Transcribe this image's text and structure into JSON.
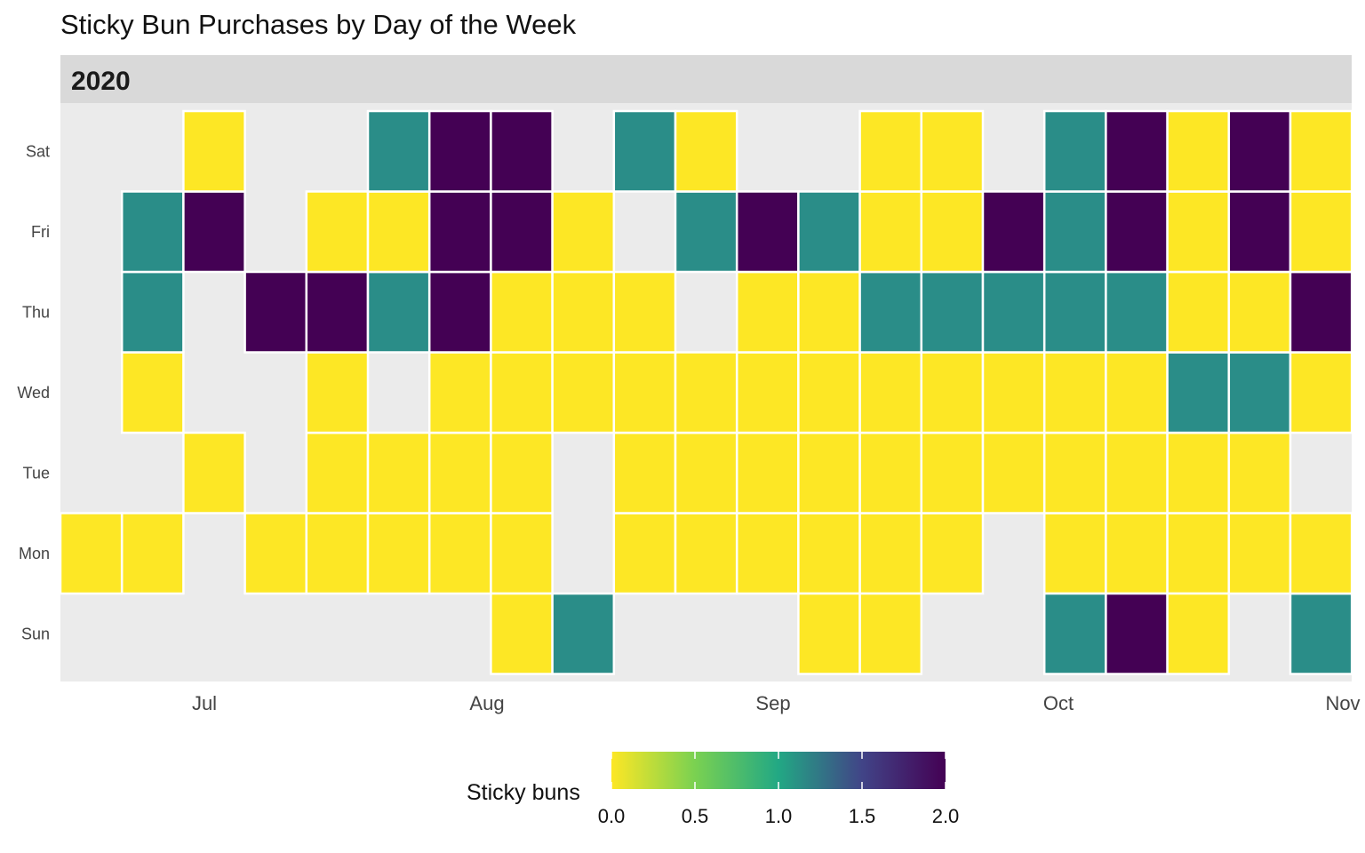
{
  "chart_data": {
    "type": "heatmap",
    "title": "Sticky Bun Purchases by Day of the Week",
    "facet_label": "2020",
    "days": [
      "Sun",
      "Mon",
      "Tue",
      "Wed",
      "Thu",
      "Fri",
      "Sat"
    ],
    "x_ticks": [
      "Jul",
      "Aug",
      "Sep",
      "Oct",
      "Nov"
    ],
    "week_start_dates": [
      "2020-06-21",
      "2020-06-28",
      "2020-07-05",
      "2020-07-12",
      "2020-07-19",
      "2020-07-26",
      "2020-08-02",
      "2020-08-09",
      "2020-08-16",
      "2020-08-23",
      "2020-08-30",
      "2020-09-06",
      "2020-09-13",
      "2020-09-20",
      "2020-09-27",
      "2020-10-04",
      "2020-10-11",
      "2020-10-18",
      "2020-10-25",
      "2020-11-01"
    ],
    "values": [
      [
        null,
        null,
        null,
        null,
        null,
        null,
        null,
        null,
        null,
        null,
        null,
        null,
        null,
        null,
        null,
        null,
        null,
        null,
        null,
        null
      ],
      [
        0,
        0,
        null,
        0,
        0,
        0,
        0,
        0,
        null,
        0,
        0,
        0,
        0,
        0,
        0,
        null,
        0,
        0,
        0,
        0
      ],
      [
        null,
        null,
        0,
        null,
        0,
        0,
        0,
        0,
        null,
        0,
        0,
        0,
        0,
        0,
        0,
        0,
        0,
        0,
        0,
        0
      ],
      [
        null,
        0,
        null,
        null,
        0,
        null,
        0,
        0,
        0,
        0,
        0,
        0,
        0,
        0,
        0,
        0,
        0,
        0,
        1,
        1
      ],
      [
        null,
        1,
        null,
        2,
        2,
        1,
        2,
        0,
        0,
        0,
        null,
        0,
        0,
        1,
        1,
        1,
        1,
        1,
        0,
        0
      ],
      [
        null,
        1,
        2,
        null,
        0,
        0,
        2,
        2,
        0,
        null,
        1,
        2,
        1,
        0,
        0,
        2,
        1,
        2,
        0,
        2
      ],
      [
        null,
        null,
        0,
        null,
        null,
        1,
        2,
        2,
        null,
        1,
        0,
        null,
        null,
        0,
        0,
        null,
        1,
        2,
        0,
        2
      ]
    ],
    "extra_values": [
      [
        null,
        null,
        null,
        null,
        null,
        null,
        null,
        0,
        1,
        null,
        null,
        null,
        0,
        0,
        null,
        null,
        1,
        2,
        0,
        null,
        1
      ],
      [
        null,
        null,
        null,
        null,
        null,
        null,
        null,
        null,
        null,
        null,
        null,
        null,
        null,
        null,
        null,
        null,
        null,
        null,
        null,
        null,
        0
      ],
      [
        null,
        null,
        null,
        null,
        null,
        null,
        null,
        null,
        null,
        null,
        null,
        null,
        null,
        null,
        null,
        null,
        null,
        null,
        null,
        null,
        null
      ],
      [
        null,
        null,
        null,
        null,
        null,
        null,
        null,
        null,
        null,
        null,
        null,
        null,
        null,
        null,
        null,
        null,
        null,
        null,
        null,
        null,
        0
      ],
      [
        null,
        null,
        null,
        null,
        null,
        null,
        null,
        null,
        null,
        null,
        null,
        null,
        null,
        null,
        null,
        null,
        null,
        null,
        null,
        null,
        2
      ],
      [
        null,
        null,
        null,
        null,
        null,
        null,
        null,
        null,
        null,
        null,
        null,
        null,
        null,
        null,
        null,
        null,
        null,
        null,
        null,
        null,
        0
      ],
      [
        null,
        null,
        null,
        null,
        null,
        null,
        null,
        null,
        null,
        null,
        null,
        null,
        null,
        null,
        null,
        null,
        null,
        null,
        null,
        null,
        0
      ]
    ],
    "legend": {
      "title": "Sticky buns",
      "position": "bottom",
      "range": [
        0,
        2
      ],
      "ticks": [
        "0.0",
        "0.5",
        "1.0",
        "1.5",
        "2.0"
      ]
    },
    "colors": {
      "v0": "#fde725",
      "v1": "#2a8d88",
      "v2": "#440154",
      "panel_bg": "#ebebeb",
      "strip_bg": "#d9d9d9",
      "tile_border": "#ffffff"
    }
  }
}
